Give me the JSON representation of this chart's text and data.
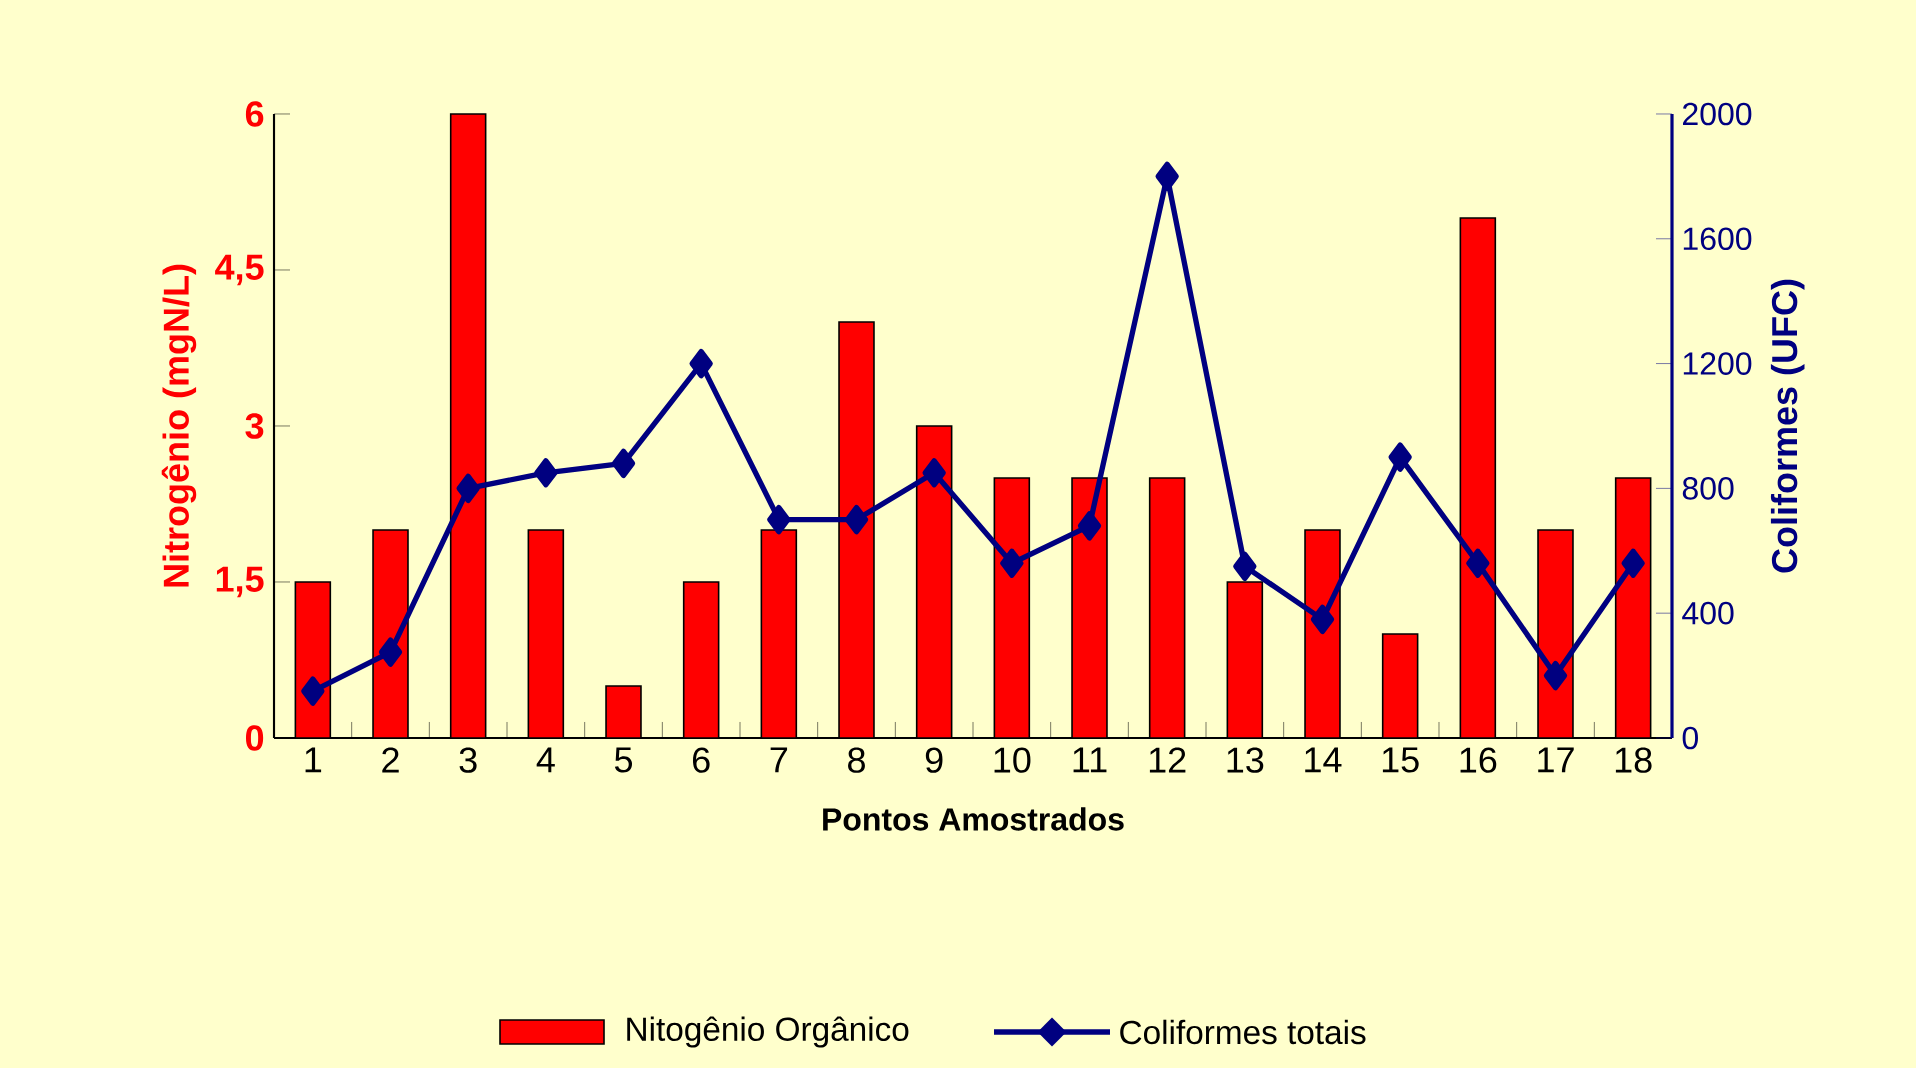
{
  "chart_data": {
    "type": "bar",
    "xlabel": "Pontos Amostrados",
    "ylabel": "Nitrogênio (mgN/L)",
    "y2label": "Coliformes (UFC)",
    "categories": [
      "1",
      "2",
      "3",
      "4",
      "5",
      "6",
      "7",
      "8",
      "9",
      "10",
      "11",
      "12",
      "13",
      "14",
      "15",
      "16",
      "17",
      "18"
    ],
    "series": [
      {
        "name": "Nitogênio Orgânico",
        "color": "#ff0000",
        "values": [
          1.5,
          2,
          6,
          2,
          0.5,
          1.5,
          2,
          4,
          3,
          2.5,
          2.5,
          2.5,
          1.5,
          2,
          1,
          5,
          2,
          2.5
        ]
      },
      {
        "name": "Coliformes totais",
        "type": "line",
        "axis": "y2",
        "color": "#000080",
        "marker": "diamond",
        "values": [
          150,
          275,
          800,
          850,
          880,
          1200,
          700,
          700,
          850,
          560,
          680,
          1800,
          550,
          380,
          900,
          560,
          200,
          560
        ]
      }
    ],
    "ylim": [
      0,
      6
    ],
    "yticks": [
      0,
      {
        "value": 1.5,
        "label": "1,5"
      },
      3,
      {
        "value": 4.5,
        "label": "4,5"
      },
      6
    ],
    "y2lim": [
      0,
      2000
    ],
    "y2ticks": [
      0,
      400,
      800,
      1200,
      1600,
      2000
    ],
    "legend": "bottom"
  }
}
